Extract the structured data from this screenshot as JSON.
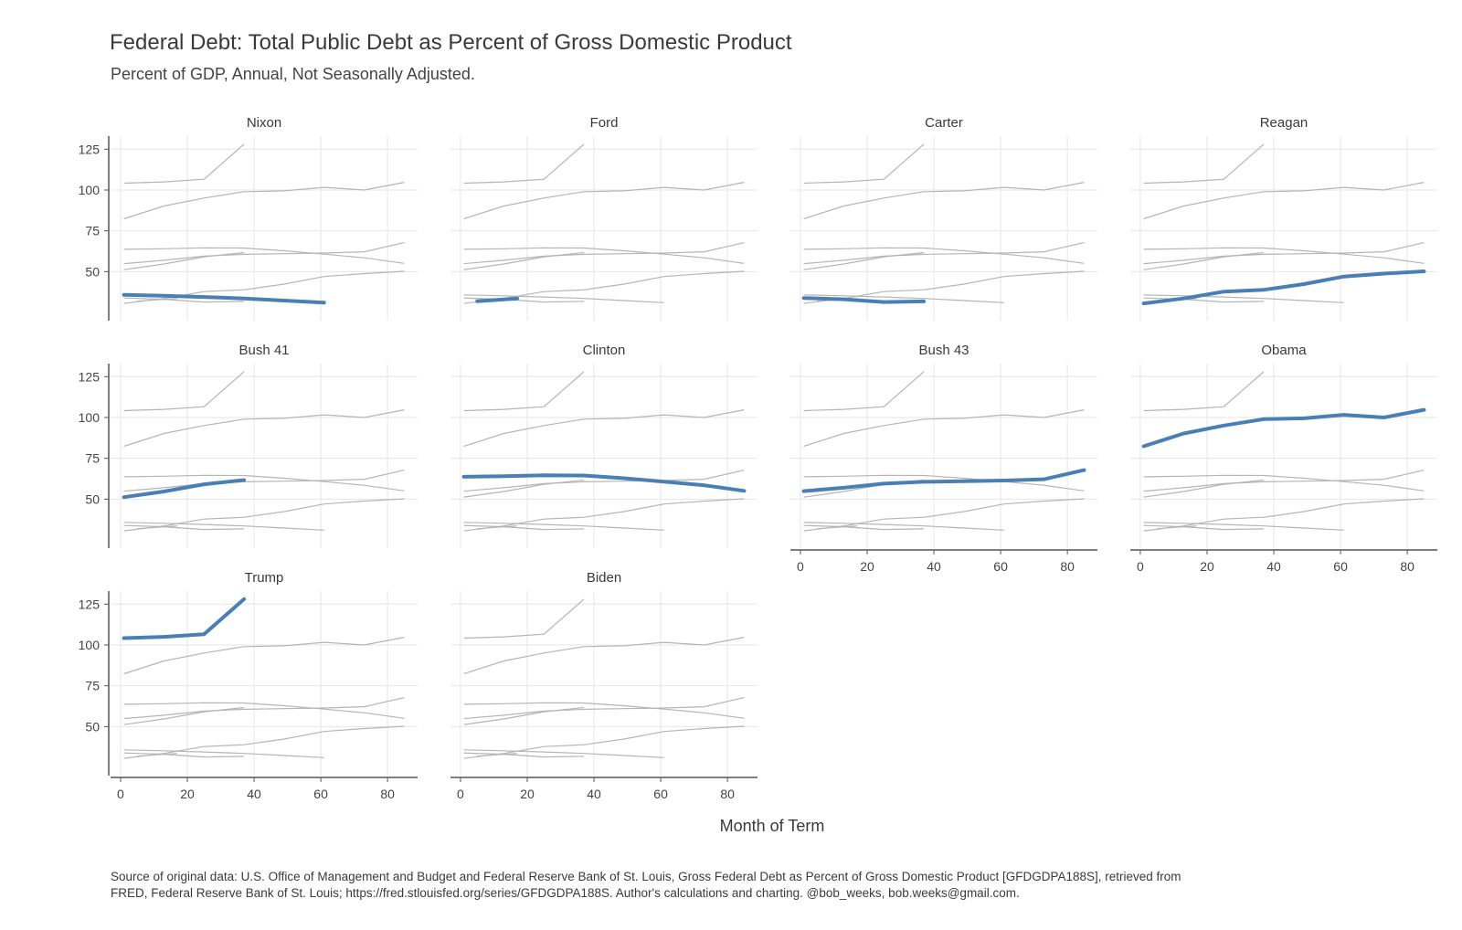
{
  "chart_data": {
    "type": "line",
    "title": "Federal Debt: Total Public Debt as Percent of Gross Domestic Product",
    "subtitle": "Percent of GDP, Annual, Not Seasonally Adjusted.",
    "xlabel": "Month of Term",
    "caption_lines": [
      "Source of original data: U.S. Office of Management and Budget and Federal Reserve Bank of St. Louis, Gross Federal Debt as Percent of Gross Domestic Product [GFDGDPA188S], retrieved from",
      "FRED, Federal Reserve Bank of St. Louis; https://fred.stlouisfed.org/series/GFDGDPA188S. Author's calculations and charting. @bob_weeks, bob.weeks@gmail.com."
    ],
    "xlim": [
      -3,
      89
    ],
    "ylim": [
      20,
      133
    ],
    "x_ticks": [
      0,
      20,
      40,
      60,
      80
    ],
    "y_ticks": [
      50,
      75,
      100,
      125
    ],
    "grid": true,
    "highlight_color": "#4a7fb5",
    "background_line_color": "#b5b5b5",
    "panels": [
      {
        "name": "Nixon",
        "x": [
          1,
          13,
          25,
          37,
          49,
          61
        ],
        "y": [
          35.8,
          35.2,
          34.5,
          33.6,
          32.3,
          31.0
        ]
      },
      {
        "name": "Ford",
        "x": [
          5,
          17
        ],
        "y": [
          31.9,
          33.6
        ]
      },
      {
        "name": "Carter",
        "x": [
          1,
          13,
          25,
          37
        ],
        "y": [
          33.9,
          33.1,
          31.4,
          31.8
        ]
      },
      {
        "name": "Reagan",
        "x": [
          1,
          13,
          25,
          37,
          49,
          61,
          73,
          85
        ],
        "y": [
          30.6,
          33.6,
          37.8,
          38.9,
          42.4,
          47.0,
          48.8,
          50.2
        ]
      },
      {
        "name": "Bush 41",
        "x": [
          1,
          13,
          25,
          37
        ],
        "y": [
          51.2,
          54.7,
          59.1,
          61.7
        ]
      },
      {
        "name": "Clinton",
        "x": [
          1,
          13,
          25,
          37,
          49,
          61,
          73,
          85
        ],
        "y": [
          63.7,
          64.0,
          64.6,
          64.5,
          62.8,
          60.7,
          58.5,
          55.1
        ]
      },
      {
        "name": "Bush 43",
        "x": [
          1,
          13,
          25,
          37,
          49,
          61,
          73,
          85
        ],
        "y": [
          54.9,
          57.0,
          59.5,
          60.6,
          61.0,
          61.4,
          62.2,
          67.8
        ]
      },
      {
        "name": "Obama",
        "x": [
          1,
          13,
          25,
          37,
          49,
          61,
          73,
          85
        ],
        "y": [
          82.4,
          90.2,
          95.1,
          99.0,
          99.5,
          101.6,
          100.0,
          104.7
        ]
      },
      {
        "name": "Trump",
        "x": [
          1,
          13,
          25,
          37
        ],
        "y": [
          104.2,
          105.0,
          106.6,
          128.1
        ]
      },
      {
        "name": "Biden",
        "x": [],
        "y": []
      }
    ]
  }
}
